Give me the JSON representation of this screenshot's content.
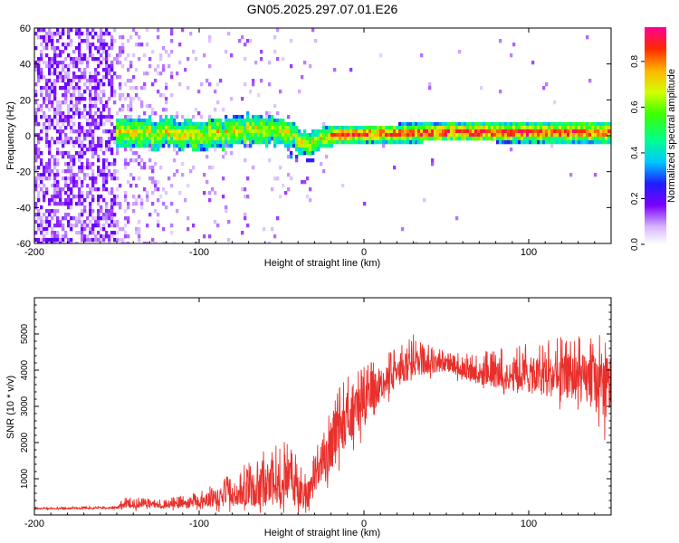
{
  "title": "GN05.2025.297.07.01.E26",
  "chart_data": [
    {
      "type": "heatmap",
      "title": "GN05.2025.297.07.01.E26",
      "xlabel": "Height of straight line (km)",
      "ylabel": "Frequency (Hz)",
      "xlim": [
        -200,
        150
      ],
      "ylim": [
        -60,
        60
      ],
      "xticks": [
        -200,
        -100,
        0,
        100
      ],
      "yticks": [
        -60,
        -40,
        -20,
        0,
        20,
        40,
        60
      ],
      "colorbar": {
        "label": "Normalized spectral amplitude",
        "range": [
          0.0,
          0.95
        ],
        "ticks": [
          0.0,
          0.2,
          0.4,
          0.6,
          0.8
        ],
        "tick_labels": [
          "0.0",
          "0.2",
          "0.4",
          "0.6",
          "0.8"
        ]
      },
      "description_of_content": {
        "noise_region_x": [
          -200,
          -150
        ],
        "band_center_hz": [
          {
            "x": -148,
            "f": 2
          },
          {
            "x": -120,
            "f": 1
          },
          {
            "x": -100,
            "f": 0
          },
          {
            "x": -80,
            "f": 1
          },
          {
            "x": -65,
            "f": 4
          },
          {
            "x": -50,
            "f": 2
          },
          {
            "x": -35,
            "f": -4
          },
          {
            "x": -20,
            "f": 0
          },
          {
            "x": 0,
            "f": 1
          },
          {
            "x": 50,
            "f": 2
          },
          {
            "x": 100,
            "f": 2
          },
          {
            "x": 150,
            "f": 2
          }
        ],
        "band_half_width_hz": [
          {
            "x": -148,
            "w": 5
          },
          {
            "x": -100,
            "w": 5
          },
          {
            "x": -60,
            "w": 5
          },
          {
            "x": -30,
            "w": 3
          },
          {
            "x": 0,
            "w": 2
          },
          {
            "x": 150,
            "w": 3
          }
        ]
      }
    },
    {
      "type": "line",
      "series": [
        {
          "name": "SNR",
          "color": "#e8302c"
        }
      ],
      "xlabel": "Height of straight line (km)",
      "ylabel": "SNR (10 * v/v)",
      "xlim": [
        -200,
        150
      ],
      "ylim": [
        0,
        6000
      ],
      "xticks": [
        -200,
        -100,
        0,
        100
      ],
      "yticks": [
        1000,
        2000,
        3000,
        4000,
        5000
      ],
      "envelope": [
        {
          "x": -200,
          "base": 170,
          "amp": 40
        },
        {
          "x": -150,
          "base": 190,
          "amp": 60
        },
        {
          "x": -145,
          "base": 250,
          "amp": 250
        },
        {
          "x": -120,
          "base": 250,
          "amp": 200
        },
        {
          "x": -100,
          "base": 300,
          "amp": 350
        },
        {
          "x": -80,
          "base": 450,
          "amp": 700
        },
        {
          "x": -60,
          "base": 600,
          "amp": 1200
        },
        {
          "x": -45,
          "base": 800,
          "amp": 1300
        },
        {
          "x": -36,
          "base": 250,
          "amp": 900
        },
        {
          "x": -33,
          "base": 300,
          "amp": 700
        },
        {
          "x": -32,
          "base": 800,
          "amp": 700
        },
        {
          "x": -20,
          "base": 1600,
          "amp": 1400
        },
        {
          "x": -12,
          "base": 2300,
          "amp": 1500
        },
        {
          "x": 0,
          "base": 2800,
          "amp": 1300
        },
        {
          "x": 15,
          "base": 3600,
          "amp": 900
        },
        {
          "x": 30,
          "base": 4100,
          "amp": 900
        },
        {
          "x": 50,
          "base": 4100,
          "amp": 400
        },
        {
          "x": 70,
          "base": 3800,
          "amp": 700
        },
        {
          "x": 100,
          "base": 3700,
          "amp": 1100
        },
        {
          "x": 130,
          "base": 3600,
          "amp": 1400
        },
        {
          "x": 150,
          "base": 3200,
          "amp": 2200
        }
      ]
    }
  ]
}
